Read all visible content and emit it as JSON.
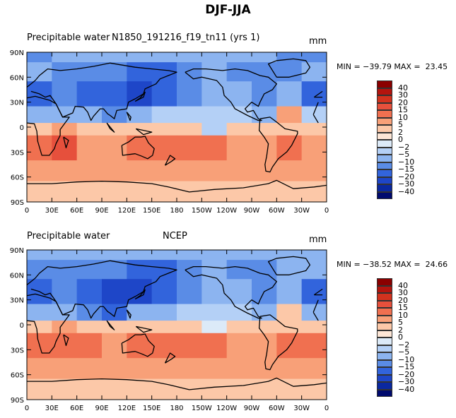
{
  "figure_title": "DJF-JJA",
  "chart_data": [
    {
      "type": "heatmap",
      "title_left": "Precipitable water",
      "title_center": "N1850_191216_f19_tn11 (yrs 1)",
      "units": "mm",
      "stats_text": "MIN = −39.79 MAX =  23.45",
      "min": -39.79,
      "max": 23.45,
      "y_tick_labels": [
        "90N",
        "60N",
        "30N",
        "0",
        "30S",
        "60S",
        "90S"
      ],
      "x_tick_labels": [
        "0",
        "30E",
        "60E",
        "90E",
        "120E",
        "150E",
        "180",
        "150W",
        "120W",
        "90W",
        "60W",
        "30W",
        "0"
      ],
      "xlim": [
        0,
        360
      ],
      "ylim": [
        -90,
        90
      ],
      "lat_bands": [
        {
          "lat": [
            78,
            90
          ],
          "values": [
            -12,
            -10,
            -8,
            -6,
            -6,
            -6,
            -6,
            -6,
            -8,
            -10,
            -12,
            -12
          ]
        },
        {
          "lat": [
            55,
            78
          ],
          "values": [
            -8,
            -12,
            -14,
            -12,
            -16,
            -18,
            -14,
            -10,
            -12,
            -14,
            -12,
            -10
          ]
        },
        {
          "lat": [
            25,
            55
          ],
          "values": [
            -18,
            -12,
            -18,
            -20,
            -26,
            -20,
            -12,
            -8,
            -10,
            -14,
            -10,
            -16
          ]
        },
        {
          "lat": [
            5,
            25
          ],
          "values": [
            -8,
            -6,
            -10,
            -14,
            -8,
            -4,
            -4,
            -3,
            -4,
            -6,
            6,
            -4
          ]
        },
        {
          "lat": [
            -10,
            5
          ],
          "values": [
            4,
            6,
            2,
            3,
            4,
            3,
            2,
            -3,
            2,
            3,
            2,
            3
          ]
        },
        {
          "lat": [
            -40,
            -10
          ],
          "values": [
            12,
            16,
            8,
            8,
            14,
            10,
            10,
            12,
            6,
            6,
            14,
            8
          ]
        },
        {
          "lat": [
            -65,
            -40
          ],
          "values": [
            6,
            6,
            6,
            6,
            6,
            6,
            5,
            6,
            6,
            6,
            6,
            6
          ]
        },
        {
          "lat": [
            -90,
            -65
          ],
          "values": [
            2,
            2,
            2,
            2,
            2,
            2,
            2,
            2,
            2,
            2,
            2,
            2
          ]
        }
      ]
    },
    {
      "type": "heatmap",
      "title_left": "Precipitable water",
      "title_center": "NCEP",
      "units": "mm",
      "stats_text": "MIN = −38.52 MAX =  24.66",
      "min": -38.52,
      "max": 24.66,
      "y_tick_labels": [
        "90N",
        "60N",
        "30N",
        "0",
        "30S",
        "60S",
        "90S"
      ],
      "x_tick_labels": [
        "0",
        "30E",
        "60E",
        "90E",
        "120E",
        "150E",
        "180",
        "150W",
        "120W",
        "90W",
        "60W",
        "30W",
        "0"
      ],
      "xlim": [
        0,
        360
      ],
      "ylim": [
        -90,
        90
      ],
      "lat_bands": [
        {
          "lat": [
            78,
            90
          ],
          "values": [
            -10,
            -10,
            -8,
            -6,
            -6,
            -6,
            -6,
            -6,
            -8,
            -10,
            -10,
            -10
          ]
        },
        {
          "lat": [
            55,
            78
          ],
          "values": [
            -12,
            -14,
            -12,
            -12,
            -16,
            -16,
            -12,
            -10,
            -12,
            -14,
            -10,
            -10
          ]
        },
        {
          "lat": [
            25,
            55
          ],
          "values": [
            -20,
            -14,
            -18,
            -22,
            -26,
            -20,
            -12,
            -10,
            -10,
            -14,
            -10,
            -18
          ]
        },
        {
          "lat": [
            5,
            25
          ],
          "values": [
            -10,
            -6,
            -12,
            -16,
            -10,
            -6,
            -4,
            -4,
            -4,
            -8,
            4,
            -6
          ]
        },
        {
          "lat": [
            -10,
            5
          ],
          "values": [
            4,
            6,
            3,
            4,
            4,
            3,
            2,
            -2,
            2,
            3,
            2,
            4
          ]
        },
        {
          "lat": [
            -40,
            -10
          ],
          "values": [
            12,
            14,
            10,
            8,
            14,
            10,
            10,
            10,
            8,
            8,
            12,
            10
          ]
        },
        {
          "lat": [
            -65,
            -40
          ],
          "values": [
            6,
            6,
            6,
            6,
            6,
            6,
            6,
            6,
            6,
            6,
            6,
            6
          ]
        },
        {
          "lat": [
            -90,
            -65
          ],
          "values": [
            2,
            2,
            2,
            2,
            2,
            2,
            2,
            2,
            2,
            2,
            2,
            2
          ]
        }
      ]
    }
  ],
  "colorbar": {
    "levels": [
      "40",
      "30",
      "20",
      "15",
      "10",
      "5",
      "2",
      "0",
      "−2",
      "−5",
      "−10",
      "−15",
      "−20",
      "−30",
      "−40"
    ],
    "colors": [
      "#8b0000",
      "#b4140e",
      "#d2321e",
      "#e6503c",
      "#f07050",
      "#f8a078",
      "#fcc8a8",
      "#fde6d6",
      "#dceaf8",
      "#b4d0f6",
      "#8cb4f0",
      "#5a8ce6",
      "#3264dc",
      "#1e46c8",
      "#0a28a0",
      "#000a6e"
    ],
    "value_thresholds": [
      40,
      30,
      20,
      15,
      10,
      5,
      2,
      0,
      -2,
      -5,
      -10,
      -15,
      -20,
      -30,
      -40
    ]
  }
}
